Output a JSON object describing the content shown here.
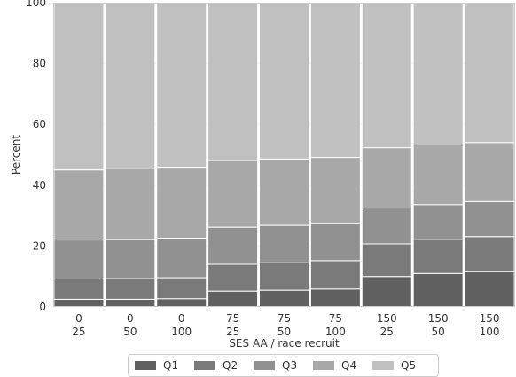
{
  "chart_data": {
    "type": "bar",
    "stacked": true,
    "xlabel": "SES AA / race recruit",
    "ylabel": "Percent",
    "ylim": [
      0,
      100
    ],
    "yticks": [
      0,
      20,
      40,
      60,
      80,
      100
    ],
    "grid": true,
    "legend_position": "bottom",
    "categories": [
      [
        "0",
        "25"
      ],
      [
        "0",
        "50"
      ],
      [
        "0",
        "100"
      ],
      [
        "75",
        "25"
      ],
      [
        "75",
        "50"
      ],
      [
        "75",
        "100"
      ],
      [
        "150",
        "25"
      ],
      [
        "150",
        "50"
      ],
      [
        "150",
        "100"
      ]
    ],
    "series": [
      {
        "name": "Q1",
        "color": "#616161",
        "values": [
          2.5,
          2.5,
          2.7,
          5.2,
          5.5,
          5.9,
          10.0,
          11.0,
          11.6
        ]
      },
      {
        "name": "Q2",
        "color": "#7a7a7a",
        "values": [
          6.7,
          6.8,
          6.9,
          8.8,
          9.0,
          9.3,
          10.7,
          11.1,
          11.5
        ]
      },
      {
        "name": "Q3",
        "color": "#919191",
        "values": [
          12.8,
          12.9,
          13.0,
          12.2,
          12.3,
          12.3,
          11.8,
          11.5,
          11.5
        ]
      },
      {
        "name": "Q4",
        "color": "#a8a8a8",
        "values": [
          23.0,
          23.2,
          23.3,
          21.9,
          21.8,
          21.6,
          19.8,
          19.6,
          19.4
        ]
      },
      {
        "name": "Q5",
        "color": "#c0c0c0",
        "values": [
          55.0,
          54.6,
          54.1,
          51.9,
          51.4,
          50.9,
          47.7,
          46.8,
          46.0
        ]
      }
    ]
  }
}
